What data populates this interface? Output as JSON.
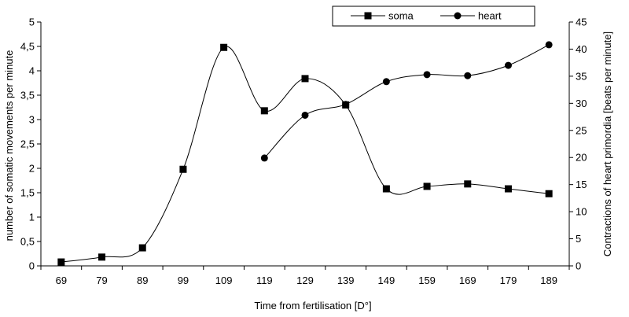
{
  "chart_data": {
    "type": "line",
    "x": [
      69,
      79,
      89,
      99,
      109,
      119,
      129,
      139,
      149,
      159,
      169,
      179,
      189
    ],
    "xlabel": "Time from fertilisation [D°]",
    "ylabel_left": "number of somatic movements per minute",
    "ylabel_right": "Contractions of heart primordia [beats per minute]",
    "ylim_left": [
      0,
      5
    ],
    "ylim_right": [
      0,
      45
    ],
    "yticks_left": [
      "0",
      "0,5",
      "1",
      "1,5",
      "2",
      "2,5",
      "3",
      "3,5",
      "4",
      "4,5",
      "5"
    ],
    "yticks_right": [
      "0",
      "5",
      "10",
      "15",
      "20",
      "25",
      "30",
      "35",
      "40",
      "45"
    ],
    "grid": false,
    "legend_position": "top",
    "series": [
      {
        "name": "soma",
        "axis": "left",
        "marker": "square",
        "values": [
          0.08,
          0.18,
          0.37,
          1.98,
          4.48,
          3.18,
          3.84,
          3.3,
          1.58,
          1.63,
          1.68,
          1.58,
          1.48
        ]
      },
      {
        "name": "heart",
        "axis": "right",
        "marker": "circle",
        "values": [
          null,
          null,
          null,
          null,
          null,
          19.9,
          27.8,
          29.8,
          34.0,
          35.3,
          35.1,
          37.0,
          40.8
        ]
      }
    ]
  }
}
